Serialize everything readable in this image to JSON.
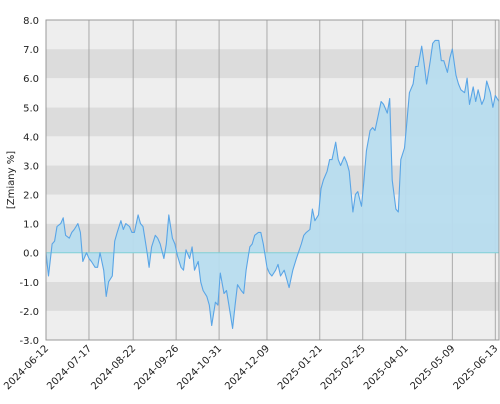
{
  "chart_data": {
    "type": "area",
    "title": "",
    "xlabel": "",
    "ylabel": "[Zmiany %]",
    "ylim": [
      -3.0,
      8.0
    ],
    "y_ticks": [
      "-3.0",
      "-2.0",
      "-1.0",
      "0.0",
      "1.0",
      "2.0",
      "3.0",
      "4.0",
      "5.0",
      "6.0",
      "7.0",
      "8.0"
    ],
    "x_tick_labels": [
      "2024-06-12",
      "2024-07-17",
      "2024-08-22",
      "2024-09-26",
      "2024-10-31",
      "2024-12-09",
      "2025-01-21",
      "2025-02-25",
      "2025-04-01",
      "2025-05-09",
      "2025-06-13"
    ],
    "x_range": [
      "2024-06-12",
      "2025-06-16"
    ],
    "grid": true,
    "series": [
      {
        "name": "",
        "points": [
          [
            "2024-06-12",
            0.0
          ],
          [
            "2024-06-14",
            -0.8
          ],
          [
            "2024-06-17",
            0.3
          ],
          [
            "2024-06-19",
            0.4
          ],
          [
            "2024-06-21",
            0.9
          ],
          [
            "2024-06-24",
            1.0
          ],
          [
            "2024-06-26",
            1.2
          ],
          [
            "2024-06-28",
            0.6
          ],
          [
            "2024-07-01",
            0.5
          ],
          [
            "2024-07-03",
            0.7
          ],
          [
            "2024-07-05",
            0.8
          ],
          [
            "2024-07-08",
            1.0
          ],
          [
            "2024-07-10",
            0.7
          ],
          [
            "2024-07-12",
            -0.3
          ],
          [
            "2024-07-15",
            0.0
          ],
          [
            "2024-07-17",
            -0.2
          ],
          [
            "2024-07-19",
            -0.3
          ],
          [
            "2024-07-22",
            -0.5
          ],
          [
            "2024-07-24",
            -0.5
          ],
          [
            "2024-07-26",
            0.0
          ],
          [
            "2024-07-29",
            -0.6
          ],
          [
            "2024-07-31",
            -1.5
          ],
          [
            "2024-08-02",
            -1.0
          ],
          [
            "2024-08-05",
            -0.8
          ],
          [
            "2024-08-07",
            0.4
          ],
          [
            "2024-08-09",
            0.7
          ],
          [
            "2024-08-12",
            1.1
          ],
          [
            "2024-08-14",
            0.8
          ],
          [
            "2024-08-16",
            1.0
          ],
          [
            "2024-08-19",
            0.9
          ],
          [
            "2024-08-21",
            0.7
          ],
          [
            "2024-08-23",
            0.7
          ],
          [
            "2024-08-26",
            1.3
          ],
          [
            "2024-08-28",
            1.0
          ],
          [
            "2024-08-30",
            0.9
          ],
          [
            "2024-09-02",
            0.1
          ],
          [
            "2024-09-04",
            -0.5
          ],
          [
            "2024-09-06",
            0.2
          ],
          [
            "2024-09-09",
            0.6
          ],
          [
            "2024-09-11",
            0.5
          ],
          [
            "2024-09-13",
            0.3
          ],
          [
            "2024-09-16",
            -0.2
          ],
          [
            "2024-09-18",
            0.3
          ],
          [
            "2024-09-20",
            1.3
          ],
          [
            "2024-09-23",
            0.5
          ],
          [
            "2024-09-25",
            0.3
          ],
          [
            "2024-09-27",
            -0.1
          ],
          [
            "2024-09-30",
            -0.5
          ],
          [
            "2024-10-02",
            -0.6
          ],
          [
            "2024-10-04",
            0.1
          ],
          [
            "2024-10-07",
            -0.2
          ],
          [
            "2024-10-09",
            0.2
          ],
          [
            "2024-10-11",
            -0.6
          ],
          [
            "2024-10-14",
            -0.3
          ],
          [
            "2024-10-16",
            -1.0
          ],
          [
            "2024-10-18",
            -1.3
          ],
          [
            "2024-10-21",
            -1.5
          ],
          [
            "2024-10-23",
            -1.8
          ],
          [
            "2024-10-25",
            -2.5
          ],
          [
            "2024-10-28",
            -1.7
          ],
          [
            "2024-10-30",
            -1.8
          ],
          [
            "2024-11-01",
            -0.7
          ],
          [
            "2024-11-04",
            -1.4
          ],
          [
            "2024-11-06",
            -1.3
          ],
          [
            "2024-11-08",
            -1.8
          ],
          [
            "2024-11-11",
            -2.6
          ],
          [
            "2024-11-13",
            -1.8
          ],
          [
            "2024-11-15",
            -1.1
          ],
          [
            "2024-11-18",
            -1.3
          ],
          [
            "2024-11-20",
            -1.4
          ],
          [
            "2024-11-22",
            -0.6
          ],
          [
            "2024-11-25",
            0.2
          ],
          [
            "2024-11-27",
            0.3
          ],
          [
            "2024-11-29",
            0.6
          ],
          [
            "2024-12-02",
            0.7
          ],
          [
            "2024-12-04",
            0.7
          ],
          [
            "2024-12-06",
            0.3
          ],
          [
            "2024-12-09",
            -0.5
          ],
          [
            "2024-12-11",
            -0.7
          ],
          [
            "2024-12-13",
            -0.8
          ],
          [
            "2024-12-16",
            -0.6
          ],
          [
            "2024-12-18",
            -0.4
          ],
          [
            "2024-12-20",
            -0.8
          ],
          [
            "2024-12-23",
            -0.6
          ],
          [
            "2024-12-27",
            -1.2
          ],
          [
            "2024-12-30",
            -0.6
          ],
          [
            "2025-01-02",
            -0.2
          ],
          [
            "2025-01-06",
            0.3
          ],
          [
            "2025-01-08",
            0.6
          ],
          [
            "2025-01-10",
            0.7
          ],
          [
            "2025-01-13",
            0.8
          ],
          [
            "2025-01-15",
            1.5
          ],
          [
            "2025-01-17",
            1.1
          ],
          [
            "2025-01-20",
            1.3
          ],
          [
            "2025-01-22",
            2.2
          ],
          [
            "2025-01-24",
            2.5
          ],
          [
            "2025-01-27",
            2.8
          ],
          [
            "2025-01-29",
            3.2
          ],
          [
            "2025-01-31",
            3.2
          ],
          [
            "2025-02-03",
            3.8
          ],
          [
            "2025-02-05",
            3.2
          ],
          [
            "2025-02-07",
            3.0
          ],
          [
            "2025-02-10",
            3.3
          ],
          [
            "2025-02-12",
            3.1
          ],
          [
            "2025-02-14",
            2.8
          ],
          [
            "2025-02-17",
            1.4
          ],
          [
            "2025-02-19",
            2.0
          ],
          [
            "2025-02-21",
            2.1
          ],
          [
            "2025-02-24",
            1.6
          ],
          [
            "2025-02-26",
            2.5
          ],
          [
            "2025-02-28",
            3.5
          ],
          [
            "2025-03-03",
            4.2
          ],
          [
            "2025-03-05",
            4.3
          ],
          [
            "2025-03-07",
            4.2
          ],
          [
            "2025-03-10",
            4.8
          ],
          [
            "2025-03-12",
            5.2
          ],
          [
            "2025-03-14",
            5.1
          ],
          [
            "2025-03-17",
            4.8
          ],
          [
            "2025-03-19",
            5.3
          ],
          [
            "2025-03-21",
            2.5
          ],
          [
            "2025-03-24",
            1.5
          ],
          [
            "2025-03-26",
            1.4
          ],
          [
            "2025-03-28",
            3.2
          ],
          [
            "2025-03-31",
            3.6
          ],
          [
            "2025-04-02",
            4.5
          ],
          [
            "2025-04-04",
            5.5
          ],
          [
            "2025-04-07",
            5.8
          ],
          [
            "2025-04-09",
            6.4
          ],
          [
            "2025-04-11",
            6.4
          ],
          [
            "2025-04-14",
            7.1
          ],
          [
            "2025-04-16",
            6.5
          ],
          [
            "2025-04-18",
            5.8
          ],
          [
            "2025-04-21",
            6.6
          ],
          [
            "2025-04-23",
            7.2
          ],
          [
            "2025-04-25",
            7.3
          ],
          [
            "2025-04-28",
            7.3
          ],
          [
            "2025-04-30",
            6.6
          ],
          [
            "2025-05-02",
            6.6
          ],
          [
            "2025-05-05",
            6.2
          ],
          [
            "2025-05-07",
            6.7
          ],
          [
            "2025-05-09",
            7.0
          ],
          [
            "2025-05-12",
            6.1
          ],
          [
            "2025-05-14",
            5.8
          ],
          [
            "2025-05-16",
            5.6
          ],
          [
            "2025-05-19",
            5.5
          ],
          [
            "2025-05-21",
            6.0
          ],
          [
            "2025-05-23",
            5.1
          ],
          [
            "2025-05-26",
            5.7
          ],
          [
            "2025-05-28",
            5.2
          ],
          [
            "2025-05-30",
            5.6
          ],
          [
            "2025-06-02",
            5.1
          ],
          [
            "2025-06-04",
            5.3
          ],
          [
            "2025-06-06",
            5.9
          ],
          [
            "2025-06-09",
            5.5
          ],
          [
            "2025-06-11",
            5.0
          ],
          [
            "2025-06-13",
            5.4
          ],
          [
            "2025-06-16",
            5.2
          ]
        ]
      }
    ]
  },
  "style": {
    "line_color": "#5aa5e6",
    "fill_color": "#b7dcee",
    "band_light": "#eeeeee",
    "band_dark": "#dcdcdc",
    "vgrid_color": "#a9a9a9",
    "zero_line_color": "#7fd0d6"
  }
}
